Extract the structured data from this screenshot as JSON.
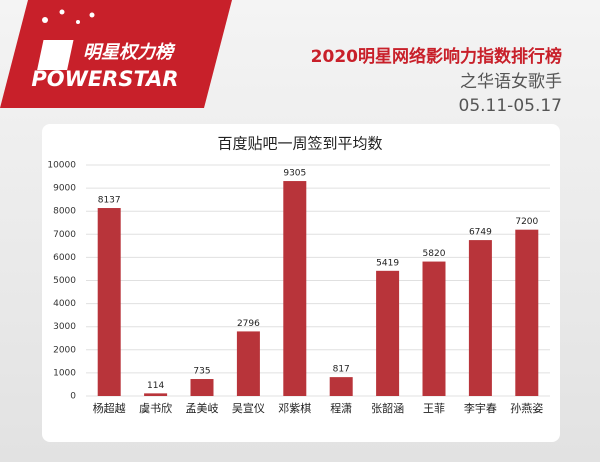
{
  "header": {
    "logo_cn": "明星权力榜",
    "logo_en": "POWERSTAR",
    "title": "2020明星网络影响力指数排行榜",
    "subtitle": "之华语女歌手",
    "date": "05.11-05.17"
  },
  "chart_data": {
    "type": "bar",
    "title": "百度贴吧一周签到平均数",
    "categories": [
      "杨超越",
      "虞书欣",
      "孟美岐",
      "吴宣仪",
      "邓紫棋",
      "程潇",
      "张韶涵",
      "王菲",
      "李宇春",
      "孙燕姿"
    ],
    "values": [
      8137,
      114,
      735,
      2796,
      9305,
      817,
      5419,
      5820,
      6749,
      7200
    ],
    "color": "#b8343a",
    "ylim": [
      0,
      10000
    ],
    "yticks": [
      0,
      1000,
      2000,
      3000,
      4000,
      5000,
      6000,
      7000,
      8000,
      9000,
      10000
    ],
    "grid": true
  }
}
